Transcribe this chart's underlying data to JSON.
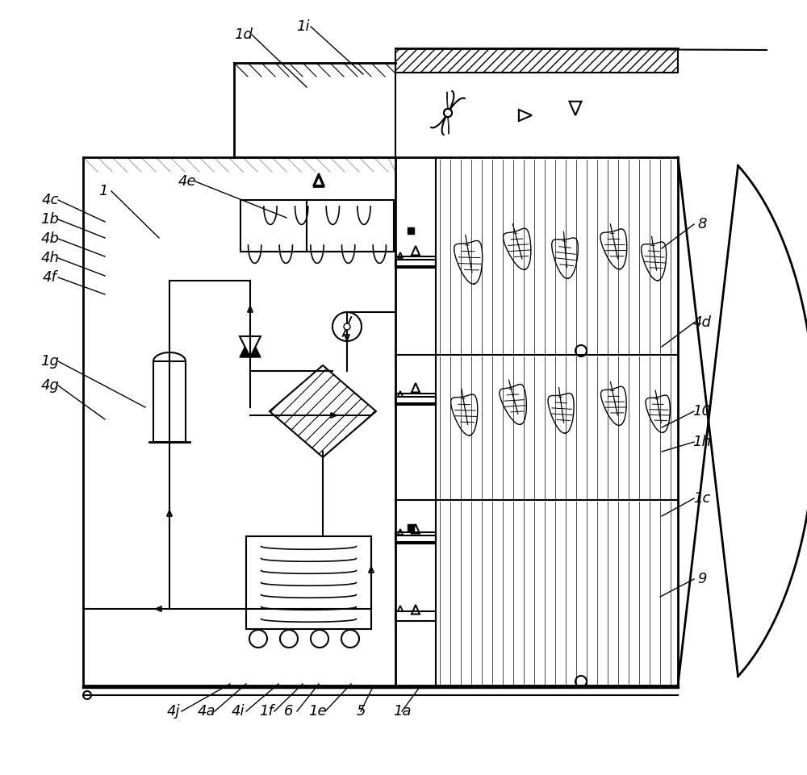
{
  "bg_color": "#ffffff",
  "lc": "#000000",
  "label_data": [
    [
      "1d",
      302,
      43
    ],
    [
      "1i",
      375,
      33
    ],
    [
      "1",
      128,
      237
    ],
    [
      "4e",
      232,
      225
    ],
    [
      "4c",
      62,
      248
    ],
    [
      "1b",
      62,
      272
    ],
    [
      "4b",
      62,
      296
    ],
    [
      "4h",
      62,
      320
    ],
    [
      "4f",
      62,
      344
    ],
    [
      "1g",
      62,
      448
    ],
    [
      "4g",
      62,
      478
    ],
    [
      "8",
      870,
      278
    ],
    [
      "4d",
      870,
      400
    ],
    [
      "10",
      870,
      510
    ],
    [
      "1h",
      870,
      548
    ],
    [
      "1c",
      870,
      618
    ],
    [
      "9",
      870,
      718
    ],
    [
      "4j",
      215,
      882
    ],
    [
      "4a",
      256,
      882
    ],
    [
      "4i",
      295,
      882
    ],
    [
      "1f",
      330,
      882
    ],
    [
      "6",
      358,
      882
    ],
    [
      "1e",
      393,
      882
    ],
    [
      "5",
      447,
      882
    ],
    [
      "1a",
      498,
      882
    ]
  ],
  "leader_lines": [
    [
      "1d",
      302,
      43,
      380,
      108
    ],
    [
      "1i",
      375,
      33,
      450,
      92
    ],
    [
      "1",
      128,
      237,
      197,
      295
    ],
    [
      "4e",
      232,
      225,
      355,
      270
    ],
    [
      "4c",
      62,
      248,
      130,
      275
    ],
    [
      "1b",
      62,
      272,
      130,
      295
    ],
    [
      "4b",
      62,
      296,
      130,
      318
    ],
    [
      "4h",
      62,
      320,
      130,
      342
    ],
    [
      "4f",
      62,
      344,
      130,
      365
    ],
    [
      "1g",
      62,
      448,
      180,
      505
    ],
    [
      "4g",
      62,
      478,
      130,
      520
    ],
    [
      "8",
      870,
      278,
      820,
      308
    ],
    [
      "4d",
      870,
      400,
      820,
      430
    ],
    [
      "10",
      870,
      510,
      820,
      530
    ],
    [
      "1h",
      870,
      548,
      820,
      560
    ],
    [
      "1c",
      870,
      618,
      820,
      640
    ],
    [
      "9",
      870,
      718,
      818,
      740
    ],
    [
      "4j",
      215,
      882,
      285,
      848
    ],
    [
      "4a",
      256,
      882,
      305,
      848
    ],
    [
      "4i",
      295,
      882,
      345,
      848
    ],
    [
      "1f",
      330,
      882,
      375,
      848
    ],
    [
      "6",
      358,
      882,
      395,
      848
    ],
    [
      "1e",
      393,
      882,
      435,
      848
    ],
    [
      "5",
      447,
      882,
      462,
      852
    ],
    [
      "1a",
      498,
      882,
      520,
      852
    ]
  ]
}
